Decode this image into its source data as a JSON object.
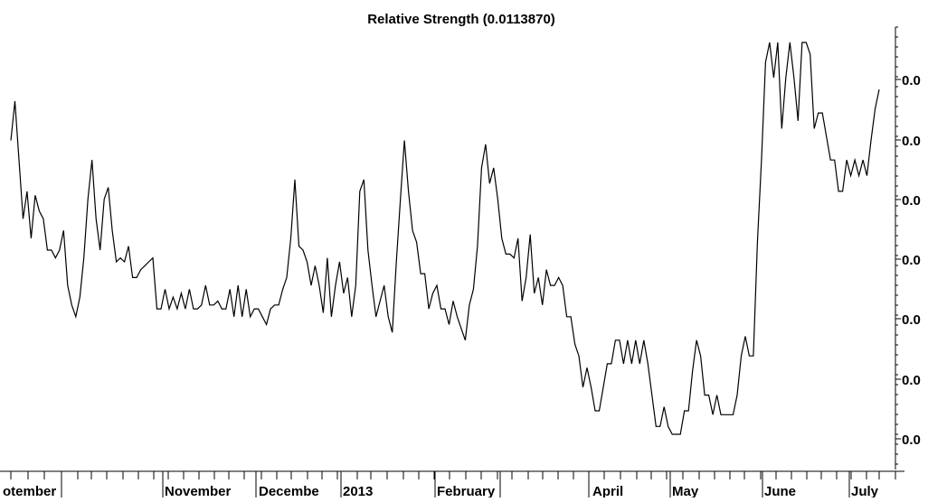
{
  "chart_data": {
    "type": "line",
    "title": "Relative Strength (0.0113870)",
    "xlabel": "",
    "ylabel": "",
    "grid": false,
    "legend": "none",
    "x_tick_labels": [
      "otember",
      "November",
      "Decembe",
      "2013",
      "February",
      "April",
      "May",
      "June",
      "July"
    ],
    "y_tick_labels": [
      "0.0",
      "0.0",
      "0.0",
      "0.0",
      "0.0",
      "0.0",
      "0.0"
    ],
    "y_range_note": "y axis in relative index units 0-100 (tick labels truncated in original)",
    "ylim": [
      0,
      100
    ],
    "series": [
      {
        "values": [
          75,
          85,
          70,
          55,
          62,
          50,
          61,
          57,
          55,
          47,
          47,
          45,
          47,
          52,
          38,
          33,
          30,
          35,
          45,
          60,
          70,
          55,
          47,
          60,
          63,
          52,
          44,
          45,
          44,
          48,
          40,
          40,
          42,
          43,
          44,
          45,
          32,
          32,
          37,
          32,
          35,
          32,
          36,
          32,
          37,
          32,
          32,
          33,
          38,
          33,
          33,
          34,
          32,
          32,
          37,
          30,
          38,
          30,
          37,
          30,
          32,
          32,
          30,
          28,
          32,
          33,
          33,
          37,
          40,
          50,
          65,
          48,
          47,
          44,
          38,
          43,
          38,
          31,
          45,
          30,
          38,
          44,
          36,
          40,
          30,
          38,
          62,
          65,
          47,
          38,
          30,
          34,
          38,
          30,
          26,
          44,
          60,
          75,
          62,
          52,
          49,
          41,
          41,
          32,
          36,
          38,
          32,
          32,
          28,
          34,
          30,
          27,
          24,
          33,
          37,
          48,
          68,
          74,
          64,
          68,
          60,
          50,
          46,
          46,
          45,
          50,
          34,
          40,
          51,
          36,
          40,
          33,
          42,
          38,
          38,
          40,
          38,
          30,
          30,
          23,
          20,
          12,
          17,
          12,
          6,
          6,
          12,
          18,
          18,
          24,
          24,
          18,
          24,
          18,
          24,
          18,
          24,
          18,
          10,
          2,
          2,
          7,
          2,
          0,
          0,
          0,
          6,
          6,
          16,
          24,
          20,
          10,
          10,
          5,
          10,
          5,
          5,
          5,
          5,
          10,
          20,
          25,
          20,
          20,
          49,
          70,
          95,
          100,
          91,
          100,
          78,
          91,
          100,
          91,
          80,
          100,
          100,
          97,
          78,
          82,
          82,
          76,
          70,
          70,
          62,
          62,
          70,
          66,
          70,
          66,
          70,
          66,
          75,
          83,
          88
        ]
      }
    ]
  }
}
